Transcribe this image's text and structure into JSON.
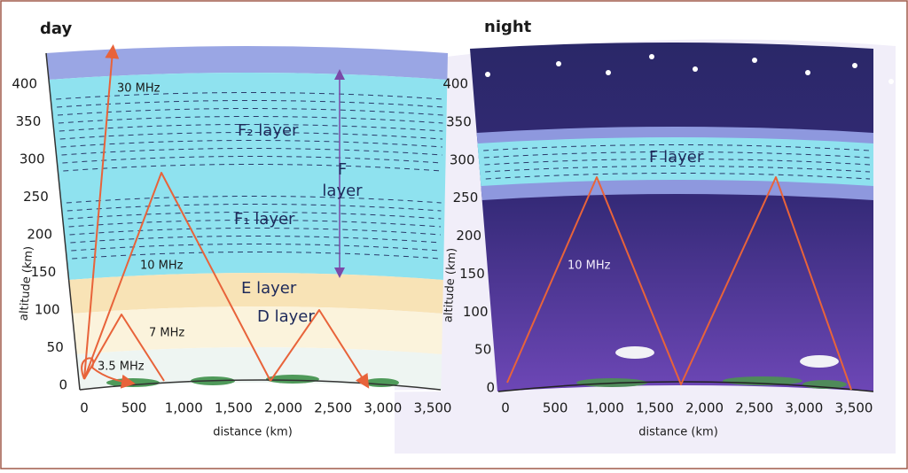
{
  "panels": [
    {
      "title": "day",
      "yticks": [
        "0",
        "50",
        "100",
        "150",
        "200",
        "250",
        "300",
        "350",
        "400"
      ],
      "xticks": [
        "0",
        "500",
        "1,000",
        "1,500",
        "2,000",
        "2,500",
        "3,000",
        "3,500"
      ],
      "y_label": "altitude (km)",
      "x_label": "distance (km)",
      "layers": {
        "f2": "F₂ layer",
        "f_top": "F",
        "f_bottom": "layer",
        "f1": "F₁ layer",
        "e": "E layer",
        "d": "D layer"
      },
      "frequencies": [
        "30 MHz",
        "10 MHz",
        "7 MHz",
        "3.5 MHz"
      ]
    },
    {
      "title": "night",
      "yticks": [
        "0",
        "50",
        "100",
        "150",
        "200",
        "250",
        "300",
        "350",
        "400"
      ],
      "xticks": [
        "0",
        "500",
        "1,000",
        "1,500",
        "2,000",
        "2,500",
        "3,000",
        "3,500"
      ],
      "y_label": "altitude (km)",
      "x_label": "distance (km)",
      "layers": {
        "f": "F layer"
      },
      "frequencies": [
        "10 MHz"
      ]
    }
  ]
}
